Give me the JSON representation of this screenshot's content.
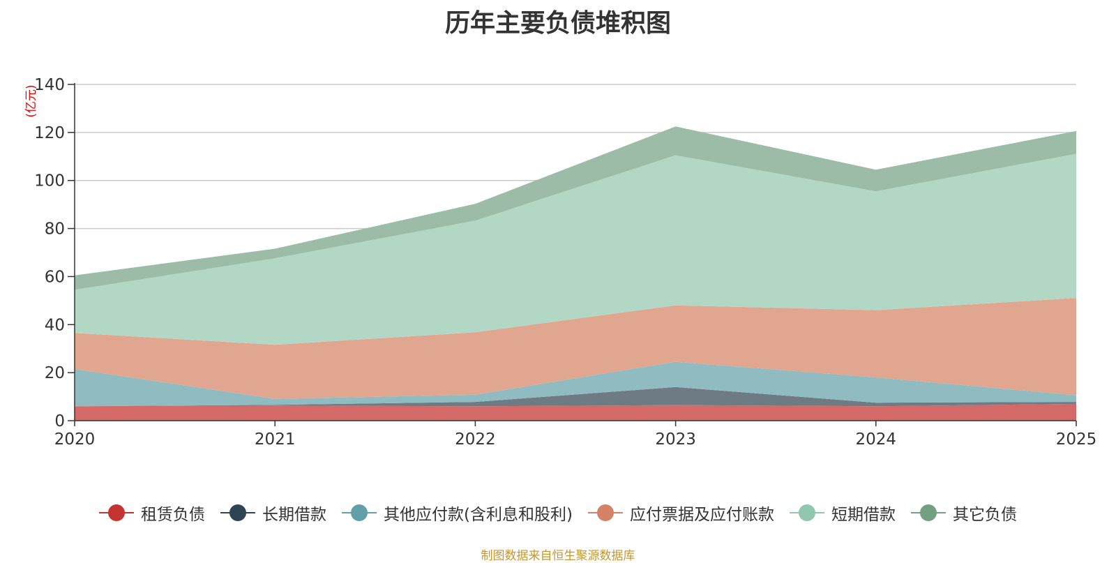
{
  "chart_data": {
    "type": "area",
    "stacked": true,
    "title": "历年主要负债堆积图",
    "ylabel": "(亿元)",
    "xlabel": "",
    "x": [
      "2020",
      "2021",
      "2022",
      "2023",
      "2024",
      "2025"
    ],
    "ylim": [
      0,
      140
    ],
    "yticks": [
      0,
      20,
      40,
      60,
      80,
      100,
      120,
      140
    ],
    "grid": true,
    "legend_position": "bottom",
    "series": [
      {
        "name": "租赁负债",
        "color": "#c23531",
        "fill": "#d46a68",
        "values": [
          6,
          6.3,
          6,
          6.5,
          6,
          7
        ]
      },
      {
        "name": "长期借款",
        "color": "#2f4554",
        "fill": "#6e7b85",
        "values": [
          0,
          0.3,
          1.8,
          7.5,
          1.5,
          0.8
        ]
      },
      {
        "name": "其他应付款(含利息和股利)",
        "color": "#61a0a8",
        "fill": "#90bcc1",
        "values": [
          15.5,
          2.5,
          3,
          10.5,
          10.5,
          2.8
        ]
      },
      {
        "name": "应付票据及应付账款",
        "color": "#d48265",
        "fill": "#e0a690",
        "values": [
          15,
          22.5,
          26,
          23.5,
          28,
          40.5
        ]
      },
      {
        "name": "短期借款",
        "color": "#91c7ae",
        "fill": "#b2d8c5",
        "values": [
          18,
          36,
          46.5,
          62.5,
          49.5,
          60
        ]
      },
      {
        "name": "其它负债",
        "color": "#749f83",
        "fill": "#9dbca7",
        "values": [
          6,
          4,
          7,
          12,
          9,
          9.5
        ]
      }
    ]
  },
  "source_note": "制图数据来自恒生聚源数据库"
}
